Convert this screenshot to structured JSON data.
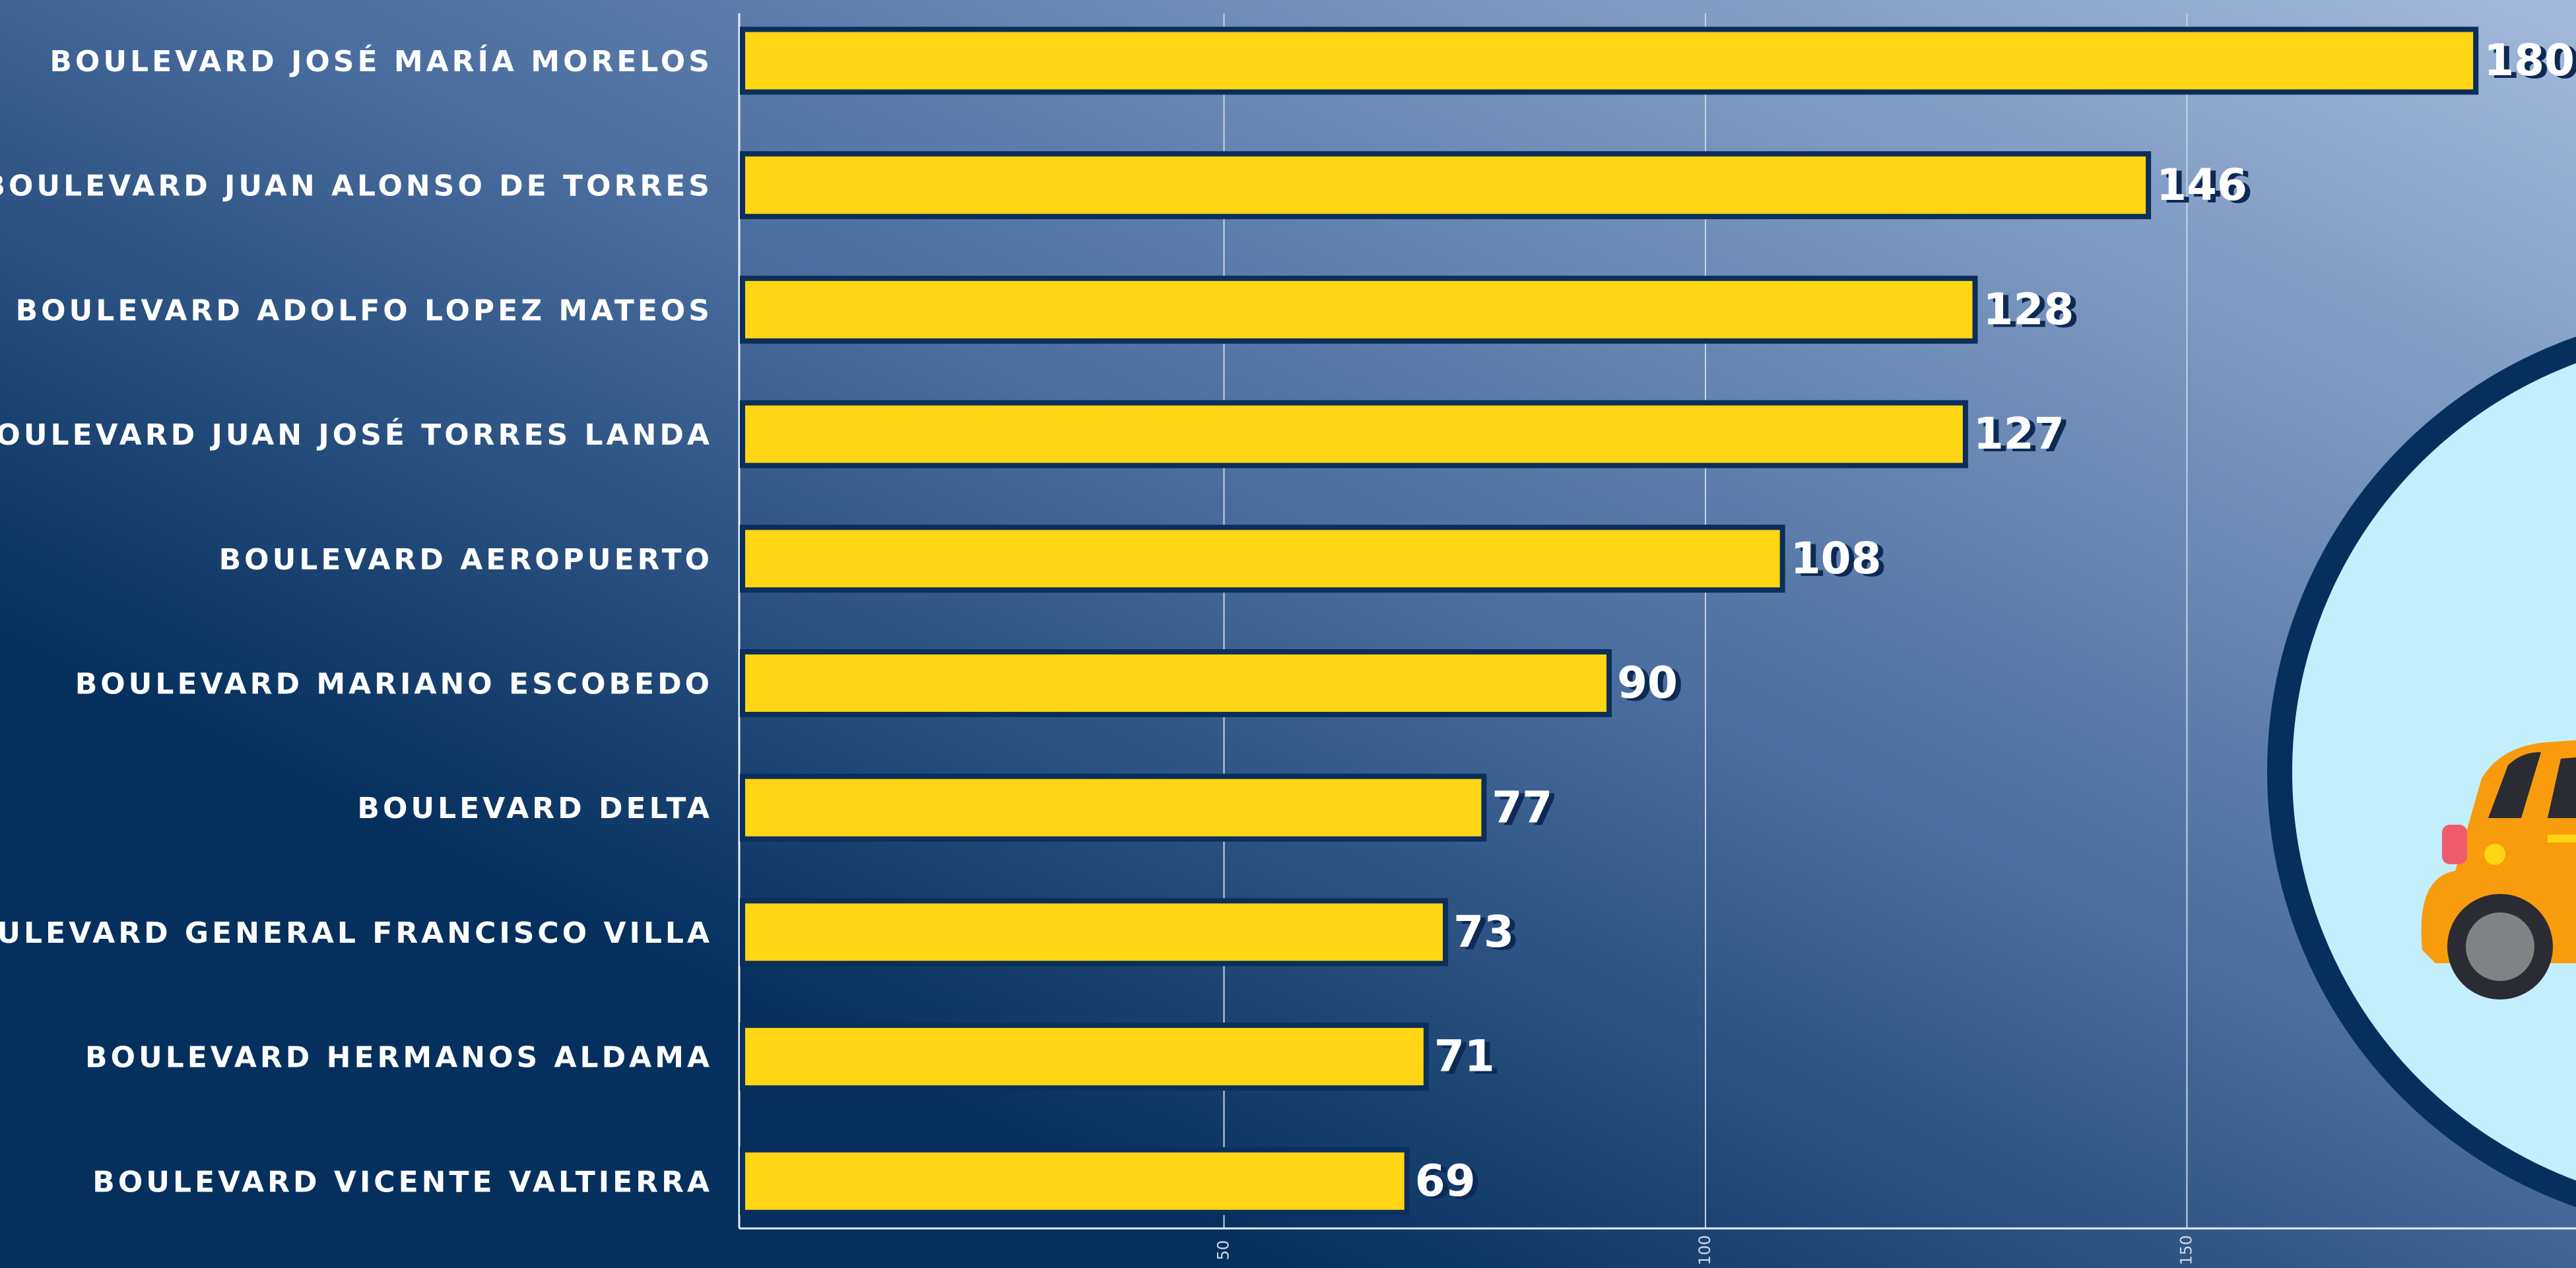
{
  "chart_data": {
    "type": "bar",
    "orientation": "horizontal",
    "categories": [
      "BOULEVARD JOSÉ MARÍA MORELOS",
      "BOULEVARD JUAN ALONSO DE TORRES",
      "BOULEVARD ADOLFO LOPEZ MATEOS",
      "BOULEVARD JUAN JOSÉ TORRES LANDA",
      "BOULEVARD AEROPUERTO",
      "BOULEVARD MARIANO ESCOBEDO",
      "BOULEVARD DELTA",
      "BOULEVARD GENERAL FRANCISCO VILLA",
      "BOULEVARD HERMANOS ALDAMA",
      "BOULEVARD VICENTE VALTIERRA"
    ],
    "values": [
      180,
      146,
      128,
      127,
      108,
      90,
      77,
      73,
      71,
      69
    ],
    "color": "#ffd514",
    "xlim": [
      0,
      190
    ],
    "xticks": [
      50,
      100,
      150
    ],
    "grid": true
  }
}
